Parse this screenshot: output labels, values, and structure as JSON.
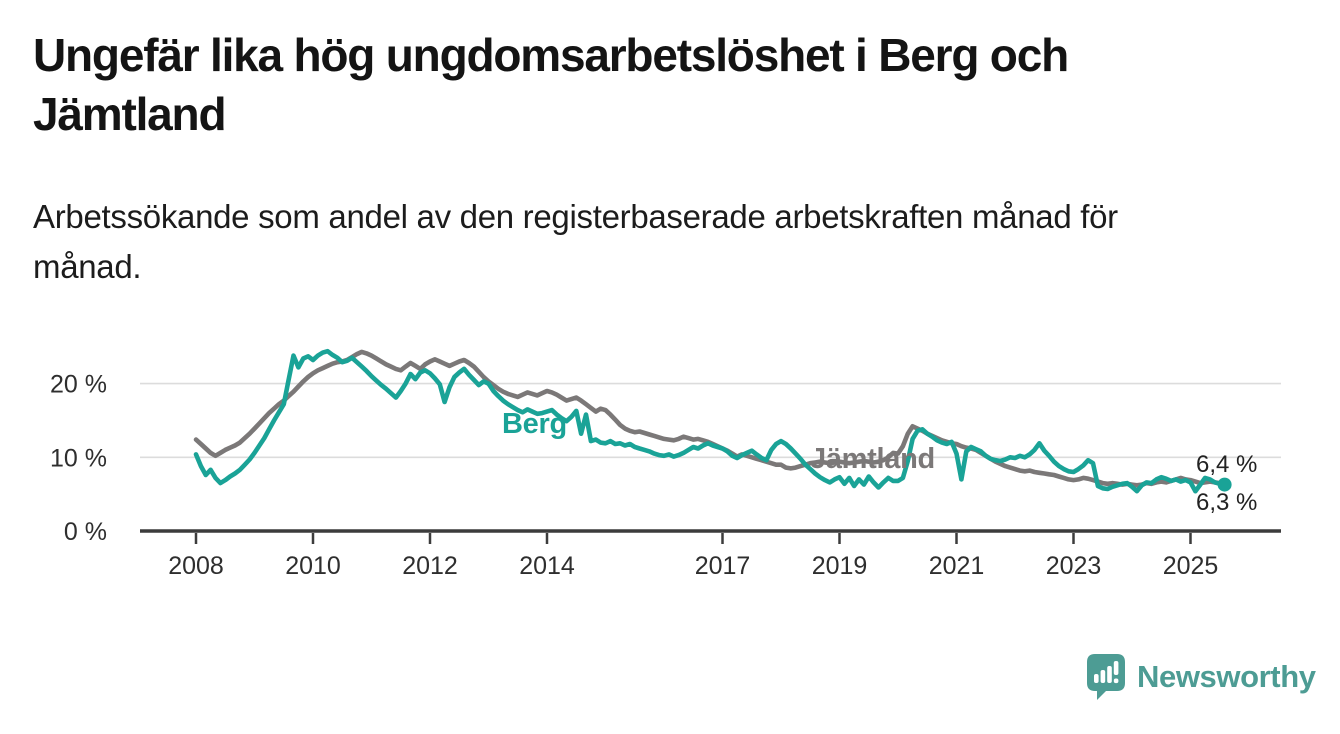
{
  "header": {
    "title": "Ungefär lika hög ungdomsarbetslöshet i Berg och\nJämtland",
    "subtitle": "Arbetssökande som andel av den registerbaserade arbetskraften månad för\nmånad."
  },
  "chart_data": {
    "type": "line",
    "title": "Ungefär lika hög ungdomsarbetslöshet i Berg och Jämtland",
    "x_unit": "month",
    "x_start": "2008-01",
    "x_end": "2025-08",
    "x_ticks": [
      {
        "v": 2008,
        "label": "2008"
      },
      {
        "v": 2010,
        "label": "2010"
      },
      {
        "v": 2012,
        "label": "2012"
      },
      {
        "v": 2014,
        "label": "2014"
      },
      {
        "v": 2017,
        "label": "2017"
      },
      {
        "v": 2019,
        "label": "2019"
      },
      {
        "v": 2021,
        "label": "2021"
      },
      {
        "v": 2023,
        "label": "2023"
      },
      {
        "v": 2025,
        "label": "2025"
      }
    ],
    "y_ticks": [
      {
        "v": 0,
        "label": "0 %"
      },
      {
        "v": 10,
        "label": "10 %"
      },
      {
        "v": 20,
        "label": "20 %"
      }
    ],
    "ylim": [
      0,
      28
    ],
    "grid": "horizontal",
    "legend_position": "inline-labels",
    "series": [
      {
        "name": "Jämtland",
        "color": "#7b7878",
        "end_label": "6,4 %",
        "end_dot": false,
        "values": [
          12.4,
          11.8,
          11.2,
          10.6,
          10.2,
          10.6,
          11.0,
          11.3,
          11.6,
          12.0,
          12.6,
          13.2,
          13.9,
          14.6,
          15.3,
          16.0,
          16.6,
          17.2,
          17.7,
          18.3,
          18.9,
          19.6,
          20.3,
          20.9,
          21.4,
          21.8,
          22.1,
          22.4,
          22.7,
          22.9,
          23.0,
          23.2,
          23.6,
          24.0,
          24.3,
          24.1,
          23.8,
          23.4,
          23.0,
          22.6,
          22.3,
          22.0,
          21.8,
          22.3,
          22.8,
          22.4,
          22.0,
          22.6,
          23.0,
          23.3,
          23.0,
          22.7,
          22.4,
          22.7,
          23.0,
          23.2,
          22.8,
          22.3,
          21.6,
          20.9,
          20.3,
          19.8,
          19.3,
          18.9,
          18.6,
          18.4,
          18.2,
          18.5,
          18.8,
          18.6,
          18.4,
          18.7,
          19.0,
          18.8,
          18.5,
          18.1,
          17.7,
          17.9,
          18.1,
          17.7,
          17.2,
          16.7,
          16.2,
          16.6,
          16.4,
          15.8,
          15.1,
          14.4,
          13.9,
          13.6,
          13.4,
          13.5,
          13.3,
          13.1,
          12.9,
          12.7,
          12.5,
          12.4,
          12.3,
          12.5,
          12.8,
          12.6,
          12.4,
          12.5,
          12.3,
          12.1,
          11.8,
          11.5,
          11.2,
          10.9,
          10.5,
          10.1,
          10.4,
          10.2,
          10.0,
          9.8,
          9.6,
          9.4,
          9.2,
          9.0,
          9.0,
          8.6,
          8.5,
          8.6,
          8.8,
          9.0,
          9.2,
          9.3,
          9.4,
          9.3,
          9.2,
          9.3,
          9.4,
          9.3,
          9.2,
          9.3,
          9.4,
          9.5,
          9.4,
          9.3,
          9.4,
          9.6,
          10.0,
          10.6,
          10.5,
          11.5,
          13.2,
          14.2,
          13.9,
          13.6,
          13.2,
          12.9,
          12.6,
          12.3,
          12.1,
          11.9,
          11.8,
          11.5,
          11.3,
          11.2,
          11.0,
          10.6,
          10.2,
          9.8,
          9.4,
          9.1,
          8.8,
          8.6,
          8.4,
          8.2,
          8.1,
          8.2,
          8.0,
          7.9,
          7.8,
          7.7,
          7.6,
          7.4,
          7.2,
          7.0,
          6.9,
          7.0,
          7.2,
          7.1,
          6.9,
          6.7,
          6.5,
          6.4,
          6.5,
          6.4,
          6.3,
          6.4,
          6.3,
          6.2,
          6.3,
          6.5,
          6.4,
          6.6,
          6.7,
          6.6,
          6.8,
          7.0,
          7.2,
          7.0,
          6.9,
          6.7,
          6.5,
          6.6,
          6.7,
          6.6,
          6.5,
          6.4
        ]
      },
      {
        "name": "Berg",
        "color": "#1aa397",
        "end_label": "6,3 %",
        "end_dot": true,
        "values": [
          10.4,
          8.8,
          7.6,
          8.3,
          7.2,
          6.5,
          6.9,
          7.4,
          7.8,
          8.3,
          9.0,
          9.7,
          10.6,
          11.6,
          12.6,
          13.8,
          15.0,
          16.1,
          17.2,
          20.5,
          23.8,
          22.2,
          23.4,
          23.7,
          23.2,
          23.8,
          24.2,
          24.4,
          23.9,
          23.5,
          22.9,
          23.1,
          23.5,
          22.9,
          22.3,
          21.7,
          21.0,
          20.4,
          19.8,
          19.3,
          18.7,
          18.1,
          19.0,
          20.0,
          21.3,
          20.6,
          21.5,
          21.8,
          21.4,
          20.7,
          19.9,
          17.5,
          19.5,
          20.9,
          21.5,
          22.0,
          21.2,
          20.5,
          19.8,
          20.3,
          20.0,
          19.0,
          18.3,
          17.7,
          17.2,
          16.8,
          16.4,
          16.1,
          16.5,
          16.2,
          15.9,
          16.0,
          16.2,
          16.4,
          15.8,
          15.3,
          14.9,
          15.5,
          16.3,
          13.2,
          15.8,
          12.2,
          12.4,
          12.0,
          11.9,
          12.2,
          11.8,
          11.9,
          11.6,
          11.8,
          11.4,
          11.2,
          11.0,
          10.8,
          10.5,
          10.3,
          10.2,
          10.4,
          10.1,
          10.3,
          10.6,
          11.0,
          11.4,
          11.2,
          11.6,
          11.9,
          11.6,
          11.4,
          11.2,
          10.8,
          10.2,
          9.9,
          10.3,
          10.6,
          10.9,
          10.4,
          9.9,
          9.6,
          11.0,
          11.8,
          12.2,
          11.8,
          11.2,
          10.5,
          9.8,
          9.0,
          8.4,
          7.8,
          7.3,
          6.9,
          6.6,
          7.0,
          7.3,
          6.4,
          7.2,
          6.1,
          7.0,
          6.3,
          7.4,
          6.6,
          5.9,
          6.6,
          7.2,
          6.8,
          6.8,
          7.2,
          9.5,
          12.5,
          13.6,
          13.8,
          13.2,
          12.8,
          12.3,
          12.0,
          11.8,
          12.1,
          10.5,
          7.0,
          10.8,
          11.4,
          11.1,
          10.8,
          10.2,
          9.8,
          9.6,
          9.5,
          9.7,
          10.0,
          9.9,
          10.2,
          10.0,
          10.4,
          11.0,
          11.9,
          10.9,
          10.2,
          9.4,
          8.8,
          8.4,
          8.1,
          8.0,
          8.4,
          8.9,
          9.6,
          9.2,
          6.1,
          5.8,
          5.7,
          6.0,
          6.2,
          6.4,
          6.5,
          6.0,
          5.4,
          6.2,
          6.6,
          6.5,
          7.0,
          7.3,
          7.1,
          6.8,
          7.0,
          6.7,
          6.9,
          6.6,
          5.4,
          6.3,
          7.2,
          7.0,
          6.6,
          6.4,
          6.3
        ]
      }
    ]
  },
  "footer": {
    "brand": "Newsworthy"
  },
  "colors": {
    "berg": "#1aa397",
    "jamtland": "#7b7878",
    "grid": "#dcdcdc",
    "axis": "#3c3c3c",
    "tick_text": "#2e2e2e",
    "end_label_text": "#222222",
    "logo": "#4d9c94",
    "background": "#ffffff"
  }
}
